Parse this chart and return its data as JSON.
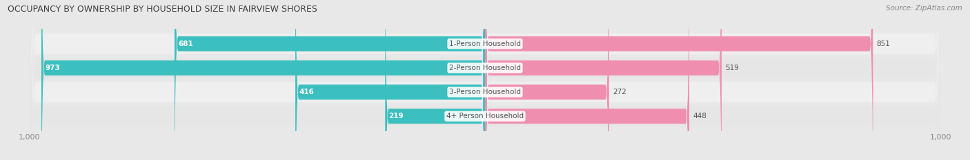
{
  "title": "OCCUPANCY BY OWNERSHIP BY HOUSEHOLD SIZE IN FAIRVIEW SHORES",
  "source": "Source: ZipAtlas.com",
  "categories": [
    "1-Person Household",
    "2-Person Household",
    "3-Person Household",
    "4+ Person Household"
  ],
  "owner_values": [
    681,
    973,
    416,
    219
  ],
  "renter_values": [
    851,
    519,
    272,
    448
  ],
  "max_val": 1000,
  "owner_color": "#3BBFBF",
  "renter_color": "#F08EB0",
  "row_bg_colors": [
    "#EFEFEF",
    "#E6E6E6"
  ],
  "bg_color": "#E8E8E8",
  "label_color": "#555555",
  "title_color": "#404040",
  "source_color": "#888888",
  "axis_label_color": "#888888",
  "value_label_color_inside": "#ffffff",
  "value_label_color_outside": "#555555",
  "legend_owner_color": "#3BBFBF",
  "legend_renter_color": "#F08EB0",
  "center_label_bg": "#ffffff"
}
